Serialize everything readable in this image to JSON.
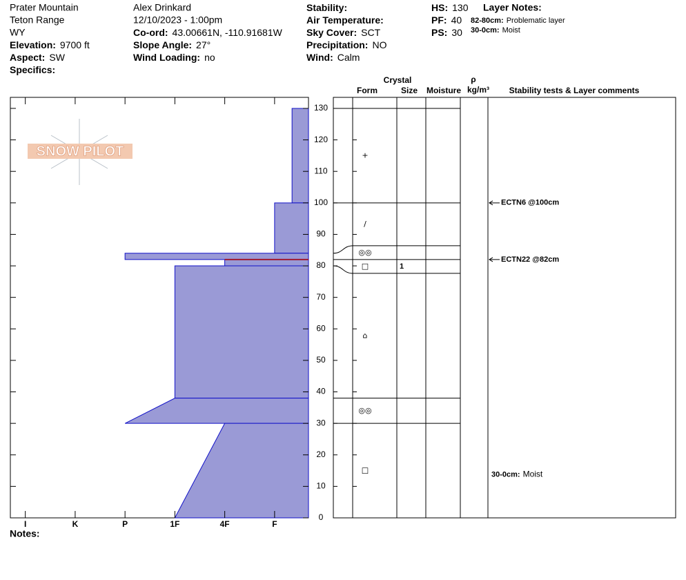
{
  "header": {
    "columns": [
      [
        {
          "text": "Prater Mountain"
        },
        {
          "text": "Teton Range"
        },
        {
          "text": "WY"
        },
        {
          "label": "Elevation:",
          "value": "9700 ft"
        },
        {
          "label": "Aspect:",
          "value": "SW"
        },
        {
          "label": "Specifics:"
        }
      ],
      [
        {
          "text": "Alex Drinkard"
        },
        {
          "text": "12/10/2023 - 1:00pm"
        },
        {
          "label": "Co-ord:",
          "value": "43.00661N, -110.91681W"
        },
        {
          "label": "Slope Angle:",
          "value": "27°"
        },
        {
          "label": "Wind Loading:",
          "value": "no"
        }
      ],
      [
        {
          "label": "Stability:"
        },
        {
          "label": "Air Temperature:"
        },
        {
          "label": "Sky Cover:",
          "value": "SCT"
        },
        {
          "label": "Precipitation:",
          "value": "NO"
        },
        {
          "label": "Wind:",
          "value": "Calm"
        }
      ],
      [
        {
          "label": "HS:",
          "value": "130"
        },
        {
          "label": "PF:",
          "value": "40"
        },
        {
          "label": "PS:",
          "value": "30"
        }
      ]
    ],
    "layer_notes": {
      "title": "Layer Notes:",
      "items": [
        {
          "label": "82-80cm:",
          "value": "Problematic layer"
        },
        {
          "label": "30-0cm:",
          "value": "Moist"
        }
      ]
    }
  },
  "logo": "SNOW PILOT",
  "notes_label": "Notes:",
  "chart_data": {
    "type": "snow-profile",
    "color": "#9a9ad6",
    "edge_color": "#1010c8",
    "problem_color": "#a01830",
    "ylim": [
      0,
      133.5
    ],
    "yticks": [
      0,
      10,
      20,
      30,
      40,
      50,
      60,
      70,
      80,
      90,
      100,
      110,
      120,
      130
    ],
    "xlim": [
      0.32,
      6.3
    ],
    "xticks": [
      {
        "value": 6,
        "label": "I"
      },
      {
        "value": 5,
        "label": "K"
      },
      {
        "value": 4,
        "label": "P"
      },
      {
        "value": 3,
        "label": "1F"
      },
      {
        "value": 2,
        "label": "4F"
      },
      {
        "value": 1,
        "label": "F"
      }
    ],
    "columns": {
      "crystal": "Crystal",
      "form": "Form",
      "size": "Size",
      "moisture": "Moisture",
      "density_symbol": "ρ",
      "density_unit": "kg/m³",
      "comments": "Stability tests & Layer comments"
    },
    "layers": [
      {
        "top": 130,
        "bottom": 100,
        "hardness_top": 0.65,
        "hardness_bottom": 0.65,
        "form": "+"
      },
      {
        "top": 100,
        "bottom": 84,
        "hardness_top": 1,
        "hardness_bottom": 1,
        "form": "/"
      },
      {
        "top": 84,
        "bottom": 82,
        "hardness_top": 4,
        "hardness_bottom": 4,
        "form": "◎◎"
      },
      {
        "top": 82,
        "bottom": 80,
        "hardness_top": 2,
        "hardness_bottom": 2,
        "form": "□",
        "size": "1",
        "problematic": true
      },
      {
        "top": 80,
        "bottom": 38,
        "hardness_top": 3,
        "hardness_bottom": 3,
        "form": "⌂"
      },
      {
        "top": 38,
        "bottom": 30,
        "hardness_top": 3,
        "hardness_bottom": 4,
        "form": "◎◎"
      },
      {
        "top": 30,
        "bottom": 0,
        "hardness_top": 2,
        "hardness_bottom": 3,
        "form": "□"
      }
    ],
    "tests": [
      {
        "depth": 100,
        "label": "ECTN6 @100cm"
      },
      {
        "depth": 82,
        "label": "ECTN22 @82cm"
      }
    ],
    "comments": [
      {
        "top": 30,
        "bottom": 0,
        "label": "30-0cm:",
        "text": "Moist"
      }
    ]
  }
}
